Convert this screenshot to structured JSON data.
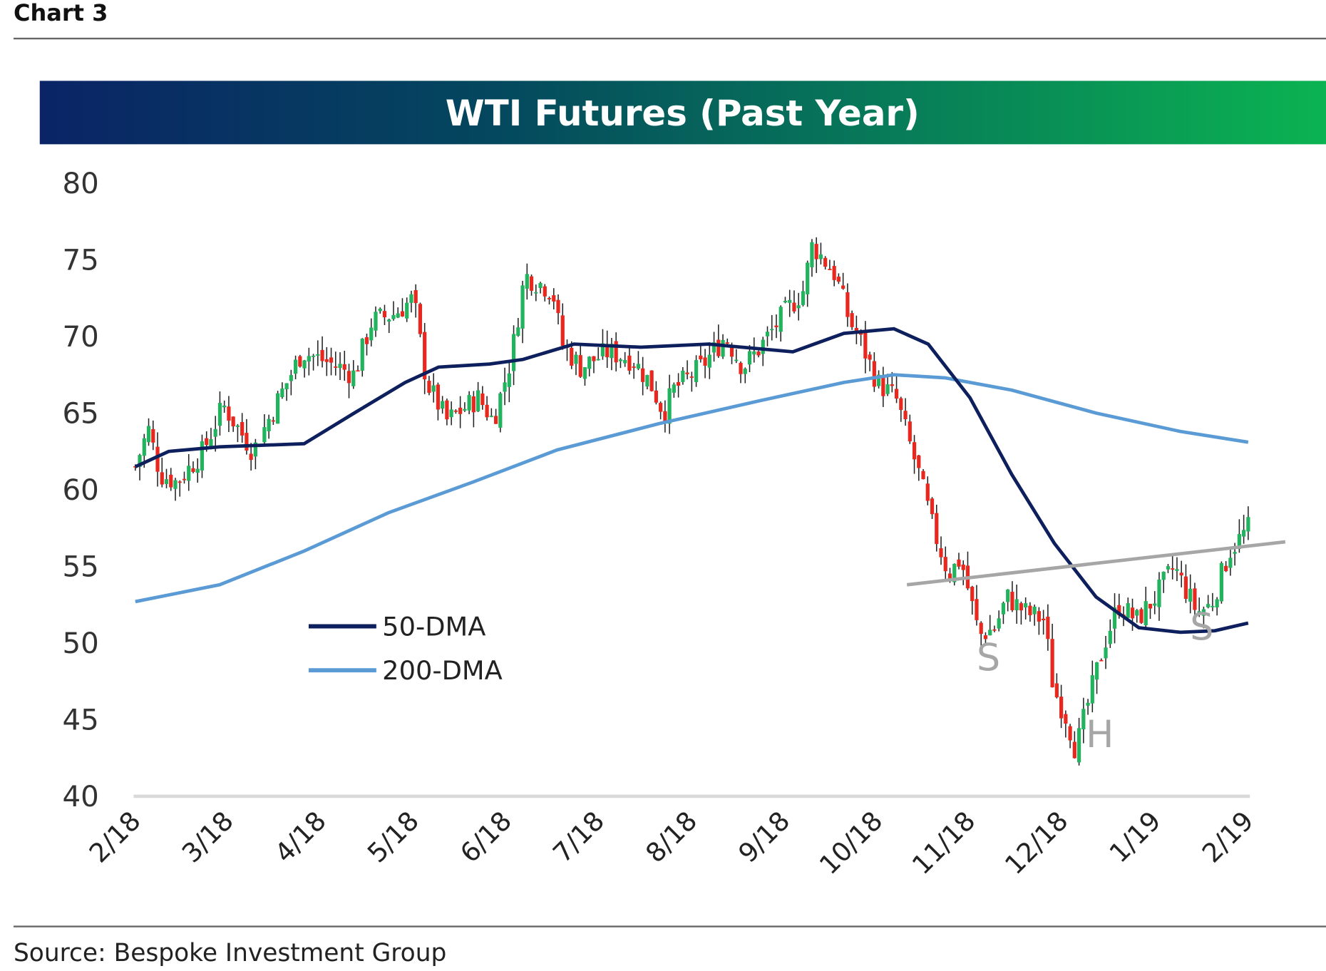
{
  "header": {
    "chart_label": "Chart 3"
  },
  "footer": {
    "source": "Source: Bespoke Investment Group"
  },
  "colors": {
    "up": "#22b35e",
    "down": "#e8281e",
    "wick": "#222222",
    "dma50": "#0d1f5c",
    "dma200": "#5b9bd5",
    "neckline": "#a6a6a6",
    "banner_left": "#0a2466",
    "banner_right": "#0bb352"
  },
  "chart_data": {
    "type": "line",
    "title": "WTI Futures (Past Year)",
    "xlabel": "",
    "ylabel": "",
    "ylim": [
      40,
      80
    ],
    "yticks": [
      "80",
      "75",
      "70",
      "65",
      "60",
      "55",
      "50",
      "45",
      "40"
    ],
    "ytick_values": [
      80,
      75,
      70,
      65,
      60,
      55,
      50,
      45,
      40
    ],
    "xlim_months": [
      0,
      12
    ],
    "xticks": [
      "2/18",
      "3/18",
      "4/18",
      "5/18",
      "6/18",
      "7/18",
      "8/18",
      "9/18",
      "10/18",
      "11/18",
      "12/18",
      "1/19",
      "2/19"
    ],
    "price_path": {
      "name": "WTI daily candles (approx.)",
      "x_months": [
        0,
        0.14,
        0.27,
        0.45,
        0.73,
        0.95,
        1.27,
        1.55,
        1.8,
        2.2,
        2.36,
        2.55,
        2.8,
        3.0,
        3.14,
        3.36,
        3.7,
        3.86,
        4.05,
        4.2,
        4.5,
        4.6,
        4.8,
        5.1,
        5.36,
        5.55,
        5.7,
        5.8,
        6.1,
        6.36,
        6.55,
        6.7,
        7.0,
        7.2,
        7.3,
        7.55,
        7.7,
        7.8,
        8.0,
        8.2,
        8.45,
        8.6,
        8.77,
        8.9,
        9.1,
        9.27,
        9.4,
        9.6,
        9.8,
        9.9,
        10.05,
        10.14,
        10.27,
        10.45,
        10.6,
        10.8,
        11.0,
        11.2,
        11.45,
        11.6,
        11.8,
        12.0
      ],
      "values": [
        61.5,
        64,
        61,
        60.5,
        62.5,
        65.5,
        62.5,
        66,
        69,
        68,
        67.5,
        71,
        71.5,
        72.5,
        67,
        64.5,
        66,
        64.5,
        68.5,
        74,
        73,
        69.5,
        68,
        69,
        68.5,
        67,
        65,
        66.5,
        68,
        70,
        68,
        69,
        71.5,
        73,
        76,
        74,
        71,
        70,
        67,
        66,
        61,
        57.5,
        54.5,
        55.5,
        50.5,
        51,
        53,
        52,
        51.5,
        47,
        45,
        43,
        46,
        50,
        52.5,
        51.5,
        53,
        55,
        52,
        52.5,
        56,
        57.5
      ]
    },
    "series": [
      {
        "name": "50-DMA",
        "x_months": [
          0,
          0.36,
          0.91,
          1.82,
          2.36,
          2.91,
          3.27,
          3.82,
          4.18,
          4.73,
          5.45,
          6.18,
          7.09,
          7.64,
          8.18,
          8.55,
          9.0,
          9.45,
          9.91,
          10.36,
          10.82,
          11.27,
          11.64,
          12.0
        ],
        "values": [
          61.5,
          62.5,
          62.8,
          63,
          65,
          67,
          68,
          68.2,
          68.5,
          69.5,
          69.3,
          69.5,
          69,
          70.2,
          70.5,
          69.5,
          66,
          61,
          56.5,
          53,
          51,
          50.7,
          50.8,
          51.3
        ]
      },
      {
        "name": "200-DMA",
        "x_months": [
          0,
          0.91,
          1.82,
          2.73,
          3.64,
          4.55,
          5.64,
          6.73,
          7.64,
          8.18,
          8.73,
          9.45,
          10.36,
          11.27,
          12.0
        ],
        "values": [
          52.7,
          53.8,
          56,
          58.5,
          60.5,
          62.6,
          64.3,
          65.8,
          67,
          67.5,
          67.3,
          66.5,
          65,
          63.8,
          63.1
        ]
      }
    ],
    "neckline": {
      "x_months": [
        8.32,
        12.4
      ],
      "values": [
        53.8,
        56.6
      ]
    },
    "annotations": [
      {
        "text": "S",
        "x_month": 9.2,
        "y": 48.2
      },
      {
        "text": "H",
        "x_month": 10.4,
        "y": 43.2
      },
      {
        "text": "S",
        "x_month": 11.5,
        "y": 50.2
      }
    ],
    "legend": {
      "placement": "lower-left",
      "entries": [
        "50-DMA",
        "200-DMA"
      ]
    },
    "grid": false
  }
}
